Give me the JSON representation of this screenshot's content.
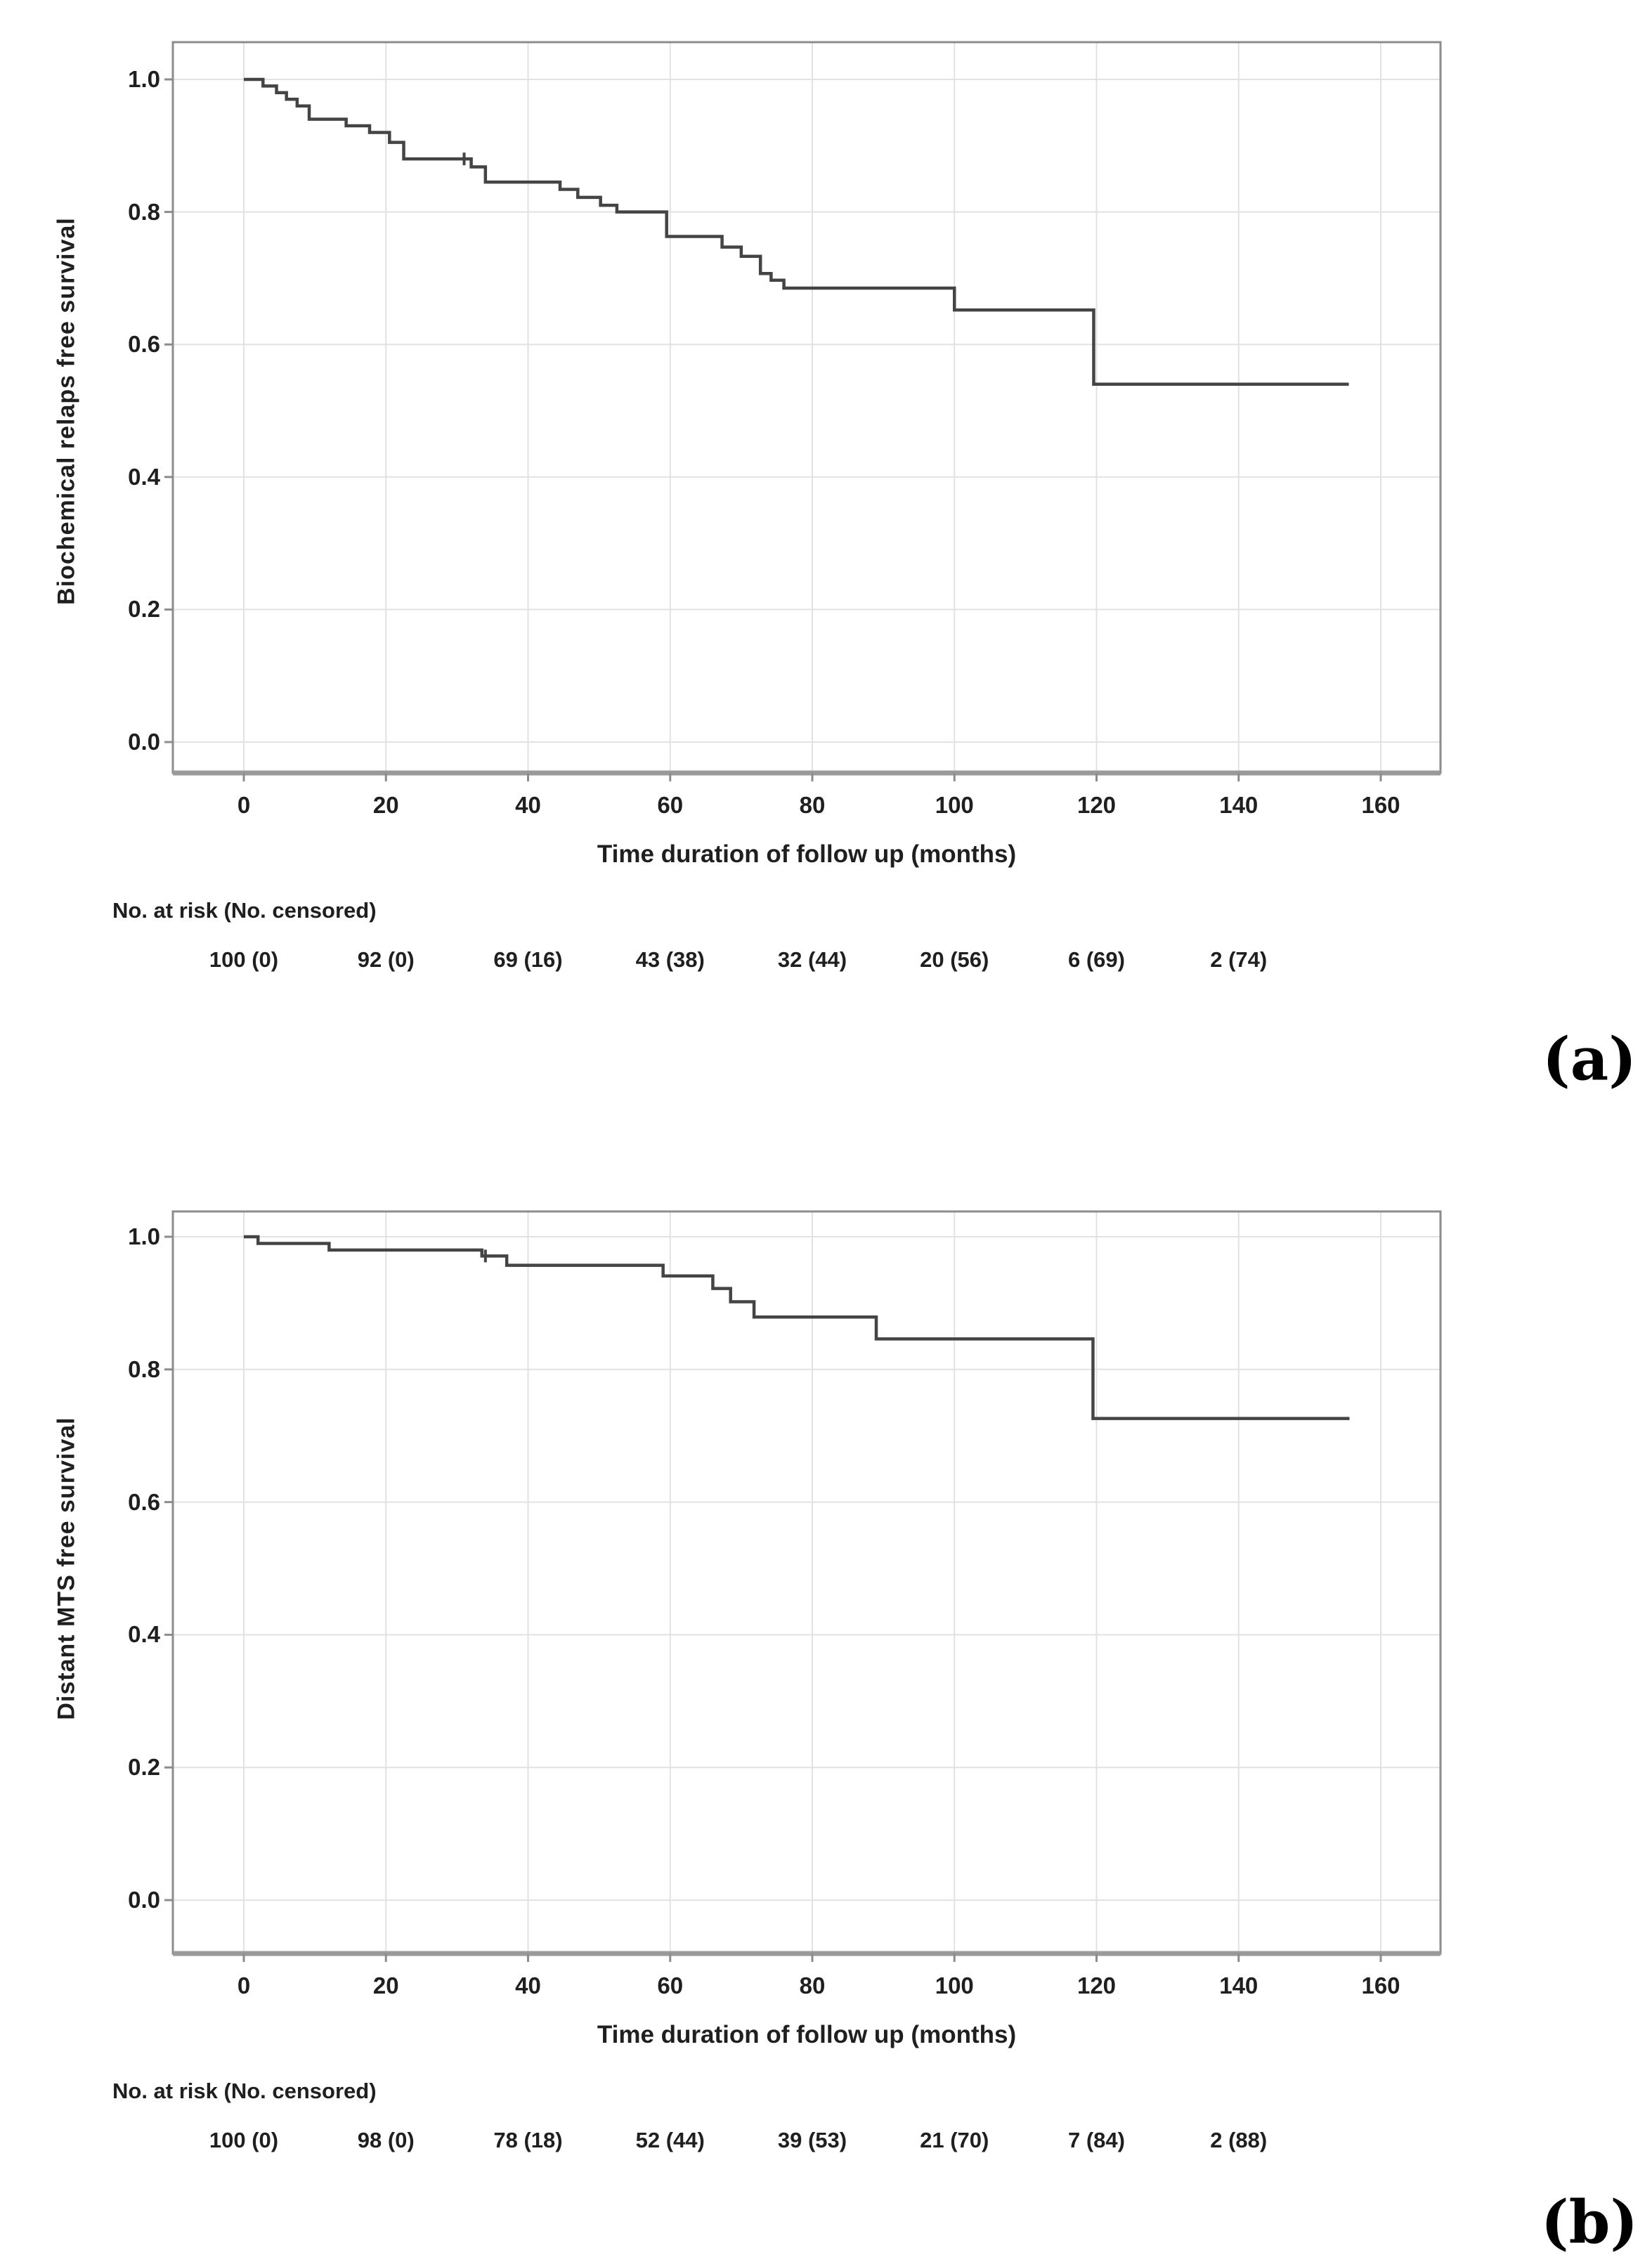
{
  "figure": {
    "panels": [
      {
        "id": "a",
        "corner_label": "(a)",
        "y_axis_title": "Biochemical relaps free survival",
        "x_axis_title": "Time duration of follow up (months)",
        "y_tick_labels": [
          "1.0",
          "0.8",
          "0.6",
          "0.4",
          "0.2",
          "0.0"
        ],
        "x_tick_labels": [
          "0",
          "20",
          "40",
          "60",
          "80",
          "100",
          "120",
          "140",
          "160"
        ],
        "risk_header": "No. at risk (No. censored)",
        "risk_values": [
          "100 (0)",
          "92 (0)",
          "69 (16)",
          "43 (38)",
          "32 (44)",
          "20 (56)",
          "6 (69)",
          "2 (74)"
        ]
      },
      {
        "id": "b",
        "corner_label": "(b)",
        "y_axis_title": "Distant MTS free survival",
        "x_axis_title": "Time duration of follow up (months)",
        "y_tick_labels": [
          "1.0",
          "0.8",
          "0.6",
          "0.4",
          "0.2",
          "0.0"
        ],
        "x_tick_labels": [
          "0",
          "20",
          "40",
          "60",
          "80",
          "100",
          "120",
          "140",
          "160"
        ],
        "risk_header": "No. at risk (No. censored)",
        "risk_values": [
          "100 (0)",
          "98 (0)",
          "78 (18)",
          "52 (44)",
          "39 (53)",
          "21 (70)",
          "7 (84)",
          "2 (88)"
        ]
      }
    ]
  },
  "chart_data": [
    {
      "type": "line",
      "subtype": "kaplan_meier_step",
      "title": "",
      "xlabel": "Time duration of follow up (months)",
      "ylabel": "Biochemical relaps free survival",
      "xlim": [
        -10,
        168
      ],
      "ylim": [
        -0.05,
        1.05
      ],
      "x_ticks": [
        0,
        20,
        40,
        60,
        80,
        100,
        120,
        140,
        160
      ],
      "y_ticks": [
        1.0,
        0.8,
        0.6,
        0.4,
        0.2,
        0.0
      ],
      "grid": true,
      "legend": false,
      "series": [
        {
          "name": "Biochemical relapse free survival",
          "steps": [
            [
              0,
              1.0
            ],
            [
              2.7,
              0.99
            ],
            [
              4.6,
              0.98
            ],
            [
              6,
              0.97
            ],
            [
              7.5,
              0.96
            ],
            [
              9.2,
              0.94
            ],
            [
              14.4,
              0.93
            ],
            [
              17.7,
              0.92
            ],
            [
              20.5,
              0.905
            ],
            [
              22.5,
              0.88
            ],
            [
              32,
              0.868
            ],
            [
              34,
              0.845
            ],
            [
              44.5,
              0.834
            ],
            [
              47,
              0.822
            ],
            [
              50.2,
              0.81
            ],
            [
              52.5,
              0.8
            ],
            [
              59.5,
              0.763
            ],
            [
              67.3,
              0.747
            ],
            [
              70,
              0.733
            ],
            [
              72.7,
              0.707
            ],
            [
              74.2,
              0.697
            ],
            [
              76,
              0.685
            ],
            [
              100,
              0.652
            ],
            [
              119.6,
              0.54
            ]
          ],
          "end_time": 155.5,
          "censor_marks": [
            [
              31,
              0.88
            ]
          ]
        }
      ],
      "at_risk_table": {
        "times": [
          0,
          20,
          40,
          60,
          80,
          100,
          120,
          140
        ],
        "n_at_risk": [
          100,
          92,
          69,
          43,
          32,
          20,
          6,
          2
        ],
        "n_censored": [
          0,
          0,
          16,
          38,
          44,
          56,
          69,
          74
        ]
      }
    },
    {
      "type": "line",
      "subtype": "kaplan_meier_step",
      "title": "",
      "xlabel": "Time duration of follow up (months)",
      "ylabel": "Distant MTS free survival",
      "xlim": [
        -10,
        168
      ],
      "ylim": [
        -0.05,
        1.05
      ],
      "x_ticks": [
        0,
        20,
        40,
        60,
        80,
        100,
        120,
        140,
        160
      ],
      "y_ticks": [
        1.0,
        0.8,
        0.6,
        0.4,
        0.2,
        0.0
      ],
      "grid": true,
      "legend": false,
      "series": [
        {
          "name": "Distant MTS free survival",
          "steps": [
            [
              0,
              1.0
            ],
            [
              2,
              0.99
            ],
            [
              12,
              0.98
            ],
            [
              33.5,
              0.971
            ],
            [
              37,
              0.957
            ],
            [
              59,
              0.941
            ],
            [
              66,
              0.922
            ],
            [
              68.5,
              0.902
            ],
            [
              71.8,
              0.879
            ],
            [
              89,
              0.846
            ],
            [
              119.5,
              0.726
            ]
          ],
          "end_time": 155.6,
          "censor_marks": [
            [
              34,
              0.971
            ]
          ]
        }
      ],
      "at_risk_table": {
        "times": [
          0,
          20,
          40,
          60,
          80,
          100,
          120,
          140
        ],
        "n_at_risk": [
          100,
          98,
          78,
          52,
          39,
          21,
          7,
          2
        ],
        "n_censored": [
          0,
          0,
          18,
          44,
          53,
          70,
          84,
          88
        ]
      }
    }
  ],
  "colors": {
    "curve": "#444444",
    "grid": "#e2e2e2",
    "box_border": "#8c8c8c",
    "bottom_axis": "#9a9a9a",
    "text": "#1f1f1f"
  }
}
